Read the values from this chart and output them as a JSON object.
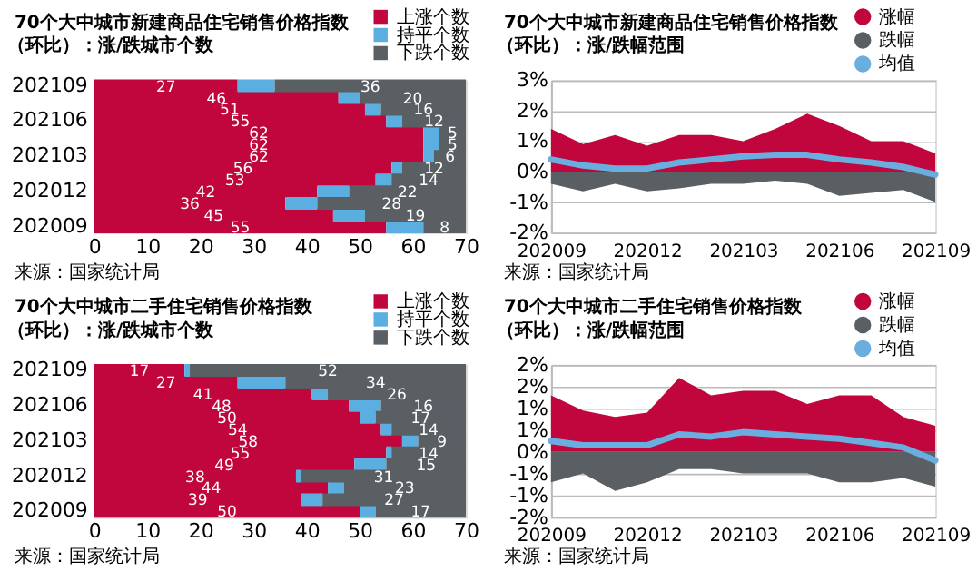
{
  "chart_data": [
    {
      "type": "bar",
      "orientation": "horizontal",
      "stacked": true,
      "title": "70个大中城市新建商品住宅销售价格指数",
      "subtitle": "（环比）：涨/跌城市个数",
      "annotations": [
        "来源：国家统计局"
      ],
      "legend": "top right",
      "grid": false,
      "categories": [
        "202109",
        null,
        null,
        "202106",
        null,
        null,
        "202103",
        null,
        null,
        "202012",
        null,
        null,
        "202009"
      ],
      "xlim": [
        0,
        70
      ],
      "xticks": [
        0,
        10,
        20,
        30,
        40,
        50,
        60,
        70
      ],
      "series": [
        {
          "name": "上涨个数",
          "color": "#c0063c",
          "values": [
            27,
            46,
            51,
            55,
            62,
            62,
            62,
            56,
            53,
            42,
            36,
            45,
            55
          ],
          "value_labels": [
            "27",
            "46",
            "51",
            "55",
            "62",
            "62",
            "62",
            "56",
            "53",
            "42",
            "36",
            "45",
            "55"
          ]
        },
        {
          "name": "持平个数",
          "color": "#5aaee0",
          "values": [
            7,
            4,
            3,
            3,
            3,
            3,
            2,
            2,
            3,
            6,
            6,
            6,
            7
          ]
        },
        {
          "name": "下跌个数",
          "color": "#5a5f64",
          "values": [
            36,
            20,
            16,
            12,
            5,
            5,
            6,
            12,
            14,
            22,
            28,
            19,
            8
          ],
          "value_labels": [
            "36",
            "20",
            "16",
            "12",
            "5",
            "5",
            "6",
            "12",
            "14",
            "22",
            "28",
            "19",
            "8"
          ]
        }
      ]
    },
    {
      "type": "area",
      "title": "70个大中城市新建商品住宅销售价格指数",
      "subtitle": "（环比）：涨/跌幅范围",
      "annotations": [
        "来源：国家统计局"
      ],
      "legend": "top right",
      "grid": "y",
      "categories": [
        "202009",
        null,
        null,
        "202012",
        null,
        null,
        "202103",
        null,
        null,
        "202106",
        null,
        null,
        "202109"
      ],
      "ylim": [
        -2,
        3
      ],
      "yticks": [
        {
          "value": -2,
          "label": "-2%"
        },
        {
          "value": -1,
          "label": "-1%"
        },
        {
          "value": 0,
          "label": "0%"
        },
        {
          "value": 1,
          "label": "1%"
        },
        {
          "value": 2,
          "label": "2%"
        },
        {
          "value": 3,
          "label": "3%"
        }
      ],
      "series": [
        {
          "name": "涨幅",
          "type": "area",
          "color": "#c0063c",
          "values": [
            1.4,
            0.9,
            1.2,
            0.85,
            1.2,
            1.2,
            1.0,
            1.4,
            1.9,
            1.5,
            1.0,
            1.0,
            0.6
          ]
        },
        {
          "name": "跌幅",
          "type": "area",
          "color": "#5a5f64",
          "values": [
            -0.4,
            -0.65,
            -0.4,
            -0.65,
            -0.55,
            -0.4,
            -0.4,
            -0.3,
            -0.4,
            -0.8,
            -0.7,
            -0.6,
            -1.0
          ]
        },
        {
          "name": "均值",
          "type": "line",
          "color": "#6aaee0",
          "values": [
            0.4,
            0.2,
            0.1,
            0.1,
            0.3,
            0.4,
            0.5,
            0.55,
            0.55,
            0.4,
            0.3,
            0.15,
            -0.1
          ]
        }
      ]
    },
    {
      "type": "bar",
      "orientation": "horizontal",
      "stacked": true,
      "title": "70个大中城市二手住宅销售价格指数",
      "subtitle": "（环比）：涨/跌城市个数",
      "annotations": [
        "来源：国家统计局"
      ],
      "legend": "top right",
      "grid": false,
      "categories": [
        "202109",
        null,
        null,
        "202106",
        null,
        null,
        "202103",
        null,
        null,
        "202012",
        null,
        null,
        "202009"
      ],
      "xlim": [
        0,
        70
      ],
      "xticks": [
        0,
        10,
        20,
        30,
        40,
        50,
        60,
        70
      ],
      "series": [
        {
          "name": "上涨个数",
          "color": "#c0063c",
          "values": [
            17,
            27,
            41,
            48,
            50,
            54,
            58,
            55,
            49,
            38,
            44,
            39,
            50
          ],
          "value_labels": [
            "17",
            "27",
            "41",
            "48",
            "50",
            "54",
            "58",
            "55",
            "49",
            "38",
            "44",
            "39",
            "50"
          ]
        },
        {
          "name": "持平个数",
          "color": "#5aaee0",
          "values": [
            1,
            9,
            3,
            6,
            3,
            2,
            3,
            1,
            6,
            1,
            3,
            4,
            3
          ]
        },
        {
          "name": "下跌个数",
          "color": "#5a5f64",
          "values": [
            52,
            34,
            26,
            16,
            17,
            14,
            9,
            14,
            15,
            31,
            23,
            27,
            17
          ],
          "value_labels": [
            "52",
            "34",
            "26",
            "16",
            "17",
            "14",
            "9",
            "14",
            "15",
            "31",
            "23",
            "27",
            "17"
          ]
        }
      ]
    },
    {
      "type": "area",
      "title": "70个大中城市二手住宅销售价格指数",
      "subtitle": "（环比）：涨/跌幅范围",
      "annotations": [
        "来源：国家统计局"
      ],
      "legend": "top right",
      "grid": "y",
      "categories": [
        "202009",
        null,
        null,
        "202012",
        null,
        null,
        "202103",
        null,
        null,
        "202106",
        null,
        null,
        "202109"
      ],
      "ylim": [
        -1.5,
        2
      ],
      "yticks": [
        {
          "value": -1.5,
          "label": "-2%"
        },
        {
          "value": -1,
          "label": "-1%"
        },
        {
          "value": -0.5,
          "label": "-1%"
        },
        {
          "value": 0,
          "label": "0%"
        },
        {
          "value": 0.5,
          "label": "1%"
        },
        {
          "value": 1,
          "label": "1%"
        },
        {
          "value": 1.5,
          "label": "2%"
        },
        {
          "value": 2,
          "label": "2%"
        }
      ],
      "series": [
        {
          "name": "涨幅",
          "type": "area",
          "color": "#c0063c",
          "values": [
            1.3,
            0.95,
            0.8,
            0.9,
            1.7,
            1.3,
            1.4,
            1.4,
            1.1,
            1.3,
            1.3,
            0.8,
            0.6
          ]
        },
        {
          "name": "跌幅",
          "type": "area",
          "color": "#5a5f64",
          "values": [
            -0.7,
            -0.5,
            -0.9,
            -0.7,
            -0.4,
            -0.4,
            -0.5,
            -0.5,
            -0.5,
            -0.7,
            -0.7,
            -0.6,
            -0.8
          ]
        },
        {
          "name": "均值",
          "type": "line",
          "color": "#6aaee0",
          "values": [
            0.25,
            0.15,
            0.15,
            0.15,
            0.4,
            0.35,
            0.45,
            0.4,
            0.35,
            0.3,
            0.2,
            0.1,
            -0.2
          ]
        }
      ]
    }
  ]
}
